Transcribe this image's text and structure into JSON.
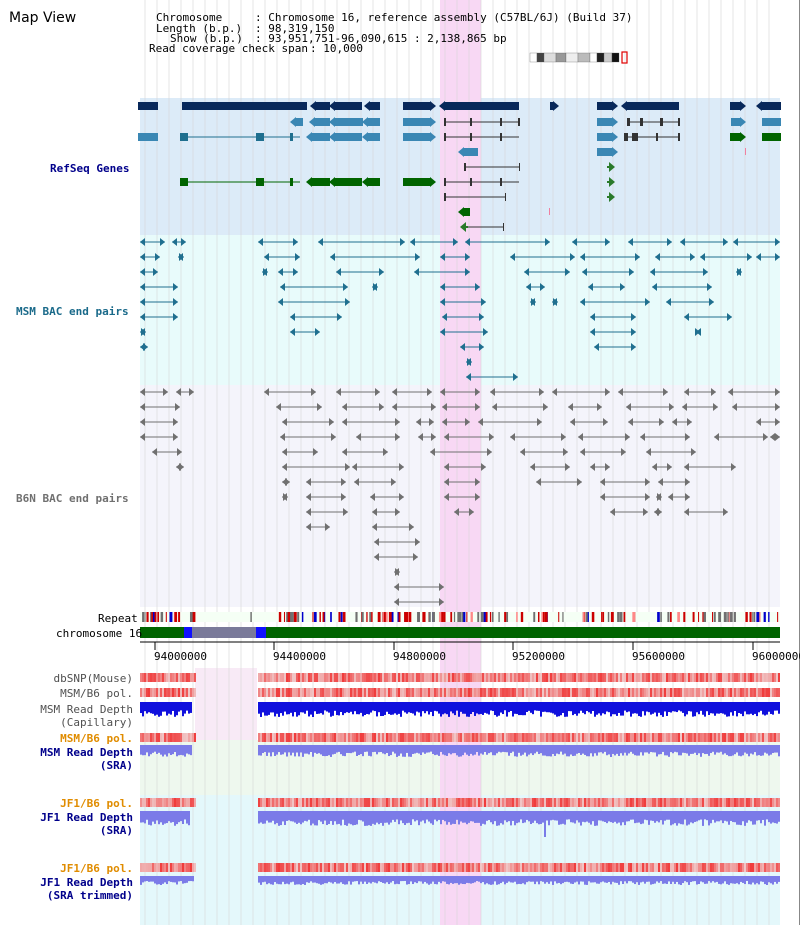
{
  "page": {
    "title": "Map View"
  },
  "header": {
    "chromosome_label": "Chromosome",
    "chromosome_value": ": Chromosome 16, reference assembly (C57BL/6J) (Build 37)",
    "length_label": "Length (b.p.)",
    "length_value": ": 98,319,150",
    "show_label": "Show (b.p.)",
    "show_value": ": 93,951,751-96,090,615 : 2,138,865 bp",
    "read_cov_label": "Read coverage check span",
    "read_cov_value": ": 10,000"
  },
  "tracks": {
    "refseq": "RefSeq Genes",
    "msm_bac": "MSM BAC end pairs",
    "b6n_bac": "B6N BAC end pairs",
    "repeat": "Repeat",
    "chrom": "chromosome 16",
    "dbsnp": "dbSNP(Mouse)",
    "msm_b6_pol": "MSM/B6 pol.",
    "msm_depth_cap_1": "MSM Read Depth",
    "msm_depth_cap_2": "(Capillary)",
    "msm_b6_pol_2": "MSM/B6 pol.",
    "msm_depth_sra_1": "MSM Read Depth",
    "msm_depth_sra_2": "(SRA)",
    "jf1_b6_pol": "JF1/B6 pol.",
    "jf1_depth_sra_1": "JF1 Read Depth",
    "jf1_depth_sra_2": "(SRA)",
    "jf1_b6_pol_2": "JF1/B6 pol.",
    "jf1_depth_trim_1": "JF1 Read Depth",
    "jf1_depth_trim_2": "(SRA trimmed)"
  },
  "axis": {
    "ticks": [
      "94000000",
      "94400000",
      "94800000",
      "95200000",
      "95600000",
      "96000000"
    ]
  },
  "colors": {
    "highlight": "#f8d8f4",
    "refseq_bg": "#dcebf8",
    "msm_bg": "#e8fbfb",
    "b6n_bg": "#f4f4fb",
    "gene_dark": "#08285a",
    "gene_mid": "#3a87b4",
    "gene_green": "#006400",
    "msm_pair": "#1f6f8f",
    "b6n_pair": "#707070",
    "chrom_green": "#006400",
    "depth_blue": "#1010dd",
    "depth_light": "#7b7be8",
    "pol_red": "#ee3030"
  }
}
